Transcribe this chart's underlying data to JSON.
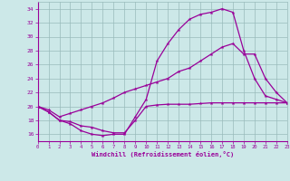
{
  "xlabel": "Windchill (Refroidissement éolien,°C)",
  "bg_color": "#cce8e8",
  "grid_color": "#99bbbb",
  "line_color": "#990099",
  "xlim": [
    0,
    23
  ],
  "ylim": [
    15,
    35
  ],
  "yticks": [
    16,
    18,
    20,
    22,
    24,
    26,
    28,
    30,
    32,
    34
  ],
  "xticks": [
    0,
    1,
    2,
    3,
    4,
    5,
    6,
    7,
    8,
    9,
    10,
    11,
    12,
    13,
    14,
    15,
    16,
    17,
    18,
    19,
    20,
    21,
    22,
    23
  ],
  "curve1_x": [
    0,
    1,
    2,
    3,
    4,
    5,
    6,
    7,
    8,
    9,
    10,
    11,
    12,
    13,
    14,
    15,
    16,
    17,
    18,
    19,
    20,
    21,
    22,
    23
  ],
  "curve1_y": [
    20.0,
    19.2,
    18.0,
    17.5,
    16.5,
    16.0,
    15.8,
    16.0,
    16.0,
    18.5,
    21.0,
    26.5,
    29.0,
    31.0,
    32.5,
    33.2,
    33.5,
    34.0,
    33.5,
    28.0,
    24.0,
    21.5,
    21.0,
    20.5
  ],
  "curve2_x": [
    0,
    1,
    2,
    3,
    4,
    5,
    6,
    7,
    8,
    9,
    10,
    11,
    12,
    13,
    14,
    15,
    16,
    17,
    18,
    19,
    20,
    21,
    22,
    23
  ],
  "curve2_y": [
    20.0,
    19.5,
    18.5,
    19.0,
    19.5,
    20.0,
    20.5,
    21.2,
    22.0,
    22.5,
    23.0,
    23.5,
    24.0,
    25.0,
    25.5,
    26.5,
    27.5,
    28.5,
    29.0,
    27.5,
    27.5,
    24.0,
    22.0,
    20.5
  ],
  "curve3_x": [
    0,
    1,
    2,
    3,
    4,
    5,
    6,
    7,
    8,
    9,
    10,
    11,
    12,
    13,
    14,
    15,
    16,
    17,
    18,
    19,
    20,
    21,
    22,
    23
  ],
  "curve3_y": [
    20.0,
    19.2,
    18.0,
    17.8,
    17.2,
    17.0,
    16.5,
    16.2,
    16.2,
    18.0,
    20.0,
    20.2,
    20.3,
    20.3,
    20.3,
    20.4,
    20.5,
    20.5,
    20.5,
    20.5,
    20.5,
    20.5,
    20.5,
    20.5
  ]
}
